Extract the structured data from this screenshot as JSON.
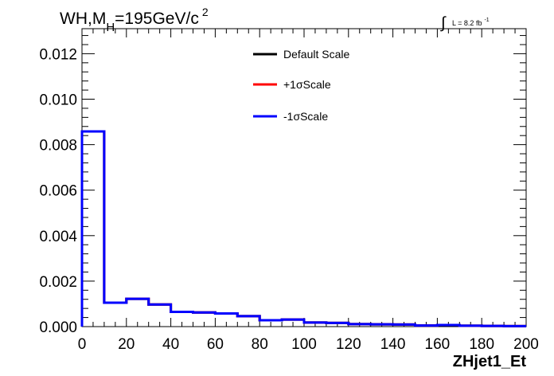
{
  "title": {
    "main": "WH,M",
    "subscript": "H",
    "rest": "=195GeV/c",
    "superscript": "2"
  },
  "lumi": {
    "integral": "∫",
    "text": "L = 8.2 fb",
    "exponent": "-1"
  },
  "legend": {
    "entries": [
      {
        "label": "Default Scale",
        "color": "#000000"
      },
      {
        "label": "+1σScale",
        "color": "#ff0000"
      },
      {
        "label": "-1σScale",
        "color": "#0000ff"
      }
    ]
  },
  "chart_data": {
    "type": "line",
    "style": "histogram-step",
    "xlabel": "ZHjet1_Et",
    "ylabel": "",
    "xlim": [
      0,
      200
    ],
    "ylim": [
      0,
      0.0131
    ],
    "x_ticks": [
      "0",
      "20",
      "40",
      "60",
      "80",
      "100",
      "120",
      "140",
      "160",
      "180",
      "200"
    ],
    "y_ticks": [
      "0.000",
      "0.002",
      "0.004",
      "0.006",
      "0.008",
      "0.010",
      "0.012"
    ],
    "bin_edges": [
      0,
      10,
      20,
      30,
      40,
      50,
      60,
      70,
      80,
      90,
      100,
      110,
      120,
      130,
      140,
      150,
      160,
      170,
      180,
      190,
      200
    ],
    "series": [
      {
        "name": "Default Scale",
        "color": "#000000",
        "values": [
          0.00858,
          0.00105,
          0.00122,
          0.00097,
          0.00065,
          0.00062,
          0.00058,
          0.00046,
          0.00028,
          0.00031,
          0.00018,
          0.00016,
          0.00011,
          0.0001,
          9e-05,
          5e-05,
          7e-05,
          4e-05,
          3e-05,
          2e-05
        ]
      },
      {
        "name": "+1σScale",
        "color": "#ff0000",
        "values": [
          0.00858,
          0.00105,
          0.00122,
          0.00097,
          0.00065,
          0.00062,
          0.00058,
          0.00046,
          0.00028,
          0.00031,
          0.00018,
          0.00016,
          0.00011,
          0.0001,
          9e-05,
          5e-05,
          7e-05,
          4e-05,
          3e-05,
          2e-05
        ]
      },
      {
        "name": "-1σScale",
        "color": "#0000ff",
        "values": [
          0.00858,
          0.00105,
          0.00122,
          0.00097,
          0.00065,
          0.00062,
          0.00058,
          0.00046,
          0.00028,
          0.00031,
          0.00018,
          0.00016,
          0.00011,
          0.0001,
          9e-05,
          5e-05,
          7e-05,
          4e-05,
          3e-05,
          2e-05
        ]
      }
    ],
    "grid": false,
    "legend_position": "top-center"
  }
}
